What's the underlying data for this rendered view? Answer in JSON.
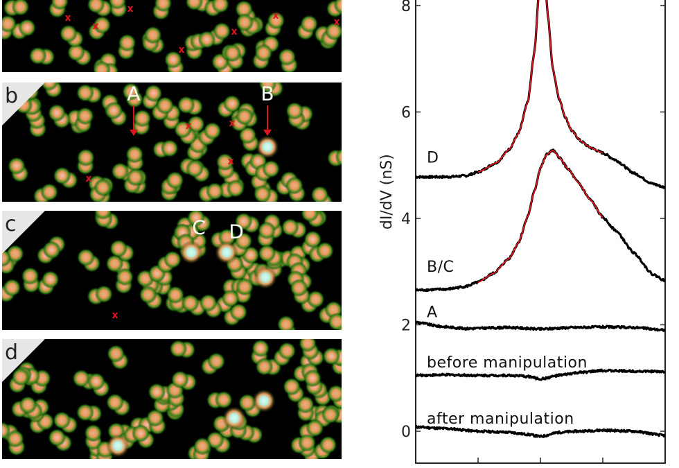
{
  "panels": [
    {
      "label": "",
      "markers": [
        [
          98,
          26
        ],
        [
          138,
          38
        ],
        [
          188,
          13
        ],
        [
          262,
          72
        ],
        [
          338,
          46
        ],
        [
          398,
          23
        ],
        [
          486,
          32
        ]
      ],
      "sites": [],
      "bright": [],
      "seed": 11
    },
    {
      "label": "b",
      "markers": [
        [
          272,
          182
        ],
        [
          335,
          178
        ],
        [
          333,
          233
        ],
        [
          128,
          258
        ]
      ],
      "sites": [
        {
          "text": "A",
          "at": [
            193,
            135
          ],
          "arrow": true
        },
        {
          "text": "B",
          "at": [
            386,
            135
          ],
          "arrow": true
        }
      ],
      "bright": [
        [
          386,
          212
        ]
      ],
      "seed": 23
    },
    {
      "label": "c",
      "markers": [
        [
          166,
          455
        ]
      ],
      "sites": [
        {
          "text": "C",
          "at": [
            287,
            328
          ],
          "arrow": false
        },
        {
          "text": "D",
          "at": [
            341,
            334
          ],
          "arrow": false
        }
      ],
      "bright": [
        [
          276,
          364
        ],
        [
          327,
          364
        ],
        [
          383,
          400
        ]
      ],
      "seed": 37
    },
    {
      "label": "d",
      "markers": [],
      "sites": [],
      "bright": [
        [
          381,
          578
        ],
        [
          338,
          603
        ],
        [
          170,
          643
        ]
      ],
      "seed": 51
    }
  ],
  "marker_symbol": "x",
  "colors": {
    "fit": "#e0141e",
    "data": "#000000",
    "marker": "#e0141e"
  },
  "chart_data": {
    "type": "line",
    "ylabel": "dI/dV (nS)",
    "xlabel": "",
    "ylim": [
      -0.6,
      8.1
    ],
    "yticks": [
      0,
      2,
      4,
      6,
      8
    ],
    "xlim": [
      -2,
      2
    ],
    "xticks": [
      -1,
      0,
      1
    ],
    "xtick_labels_visible": false,
    "grid": false,
    "series": [
      {
        "name": "D",
        "label_at": [
          -1.8,
          5.15
        ],
        "x": [
          -2,
          -1.5,
          -1.2,
          -1,
          -0.7,
          -0.5,
          -0.35,
          -0.2,
          -0.1,
          0,
          0.05,
          0.12,
          0.2,
          0.3,
          0.4,
          0.5,
          0.65,
          0.8,
          1,
          1.2,
          1.5,
          1.8,
          2
        ],
        "y": [
          4.78,
          4.78,
          4.8,
          4.87,
          5.05,
          5.3,
          5.6,
          6.2,
          7.1,
          8.6,
          9.0,
          7.8,
          6.8,
          6.25,
          5.9,
          5.65,
          5.45,
          5.33,
          5.23,
          5.1,
          4.85,
          4.65,
          4.58
        ],
        "fit_range": [
          -1,
          1
        ]
      },
      {
        "name": "B/C",
        "label_at": [
          -1.8,
          3.1
        ],
        "x": [
          -2,
          -1.5,
          -1.2,
          -1,
          -0.75,
          -0.5,
          -0.35,
          -0.2,
          -0.1,
          0,
          0.1,
          0.2,
          0.3,
          0.45,
          0.6,
          0.8,
          1,
          1.2,
          1.5,
          1.8,
          2
        ],
        "y": [
          2.65,
          2.67,
          2.72,
          2.8,
          2.97,
          3.25,
          3.55,
          4.05,
          4.5,
          4.95,
          5.2,
          5.28,
          5.15,
          4.92,
          4.68,
          4.35,
          4.02,
          3.78,
          3.35,
          2.95,
          2.83
        ],
        "fit_range": [
          -1,
          1
        ]
      },
      {
        "name": "A",
        "label_at": [
          -1.8,
          2.25
        ],
        "x": [
          -2,
          -1.6,
          -1.2,
          -0.5,
          0,
          0.5,
          1,
          1.5,
          2
        ],
        "y": [
          2.05,
          1.97,
          1.93,
          1.95,
          1.92,
          1.95,
          1.96,
          1.95,
          1.9
        ],
        "fit_range": null
      },
      {
        "name": "before manipulation",
        "label_at": [
          -1.8,
          1.3
        ],
        "x": [
          -2,
          -1.5,
          -1,
          -0.5,
          -0.2,
          0,
          0.3,
          0.6,
          1,
          1.5,
          2
        ],
        "y": [
          1.05,
          1.06,
          1.05,
          1.05,
          1.03,
          0.98,
          1.05,
          1.1,
          1.14,
          1.13,
          1.12
        ],
        "fit_range": null
      },
      {
        "name": "after manipulation",
        "label_at": [
          -1.8,
          0.25
        ],
        "x": [
          -2,
          -1.5,
          -1,
          -0.5,
          -0.2,
          0,
          0.3,
          0.6,
          1,
          1.5,
          2
        ],
        "y": [
          0.08,
          0.05,
          0.0,
          -0.02,
          -0.06,
          -0.1,
          -0.02,
          0.0,
          0.02,
          0.0,
          -0.08
        ],
        "fit_range": null
      }
    ]
  }
}
